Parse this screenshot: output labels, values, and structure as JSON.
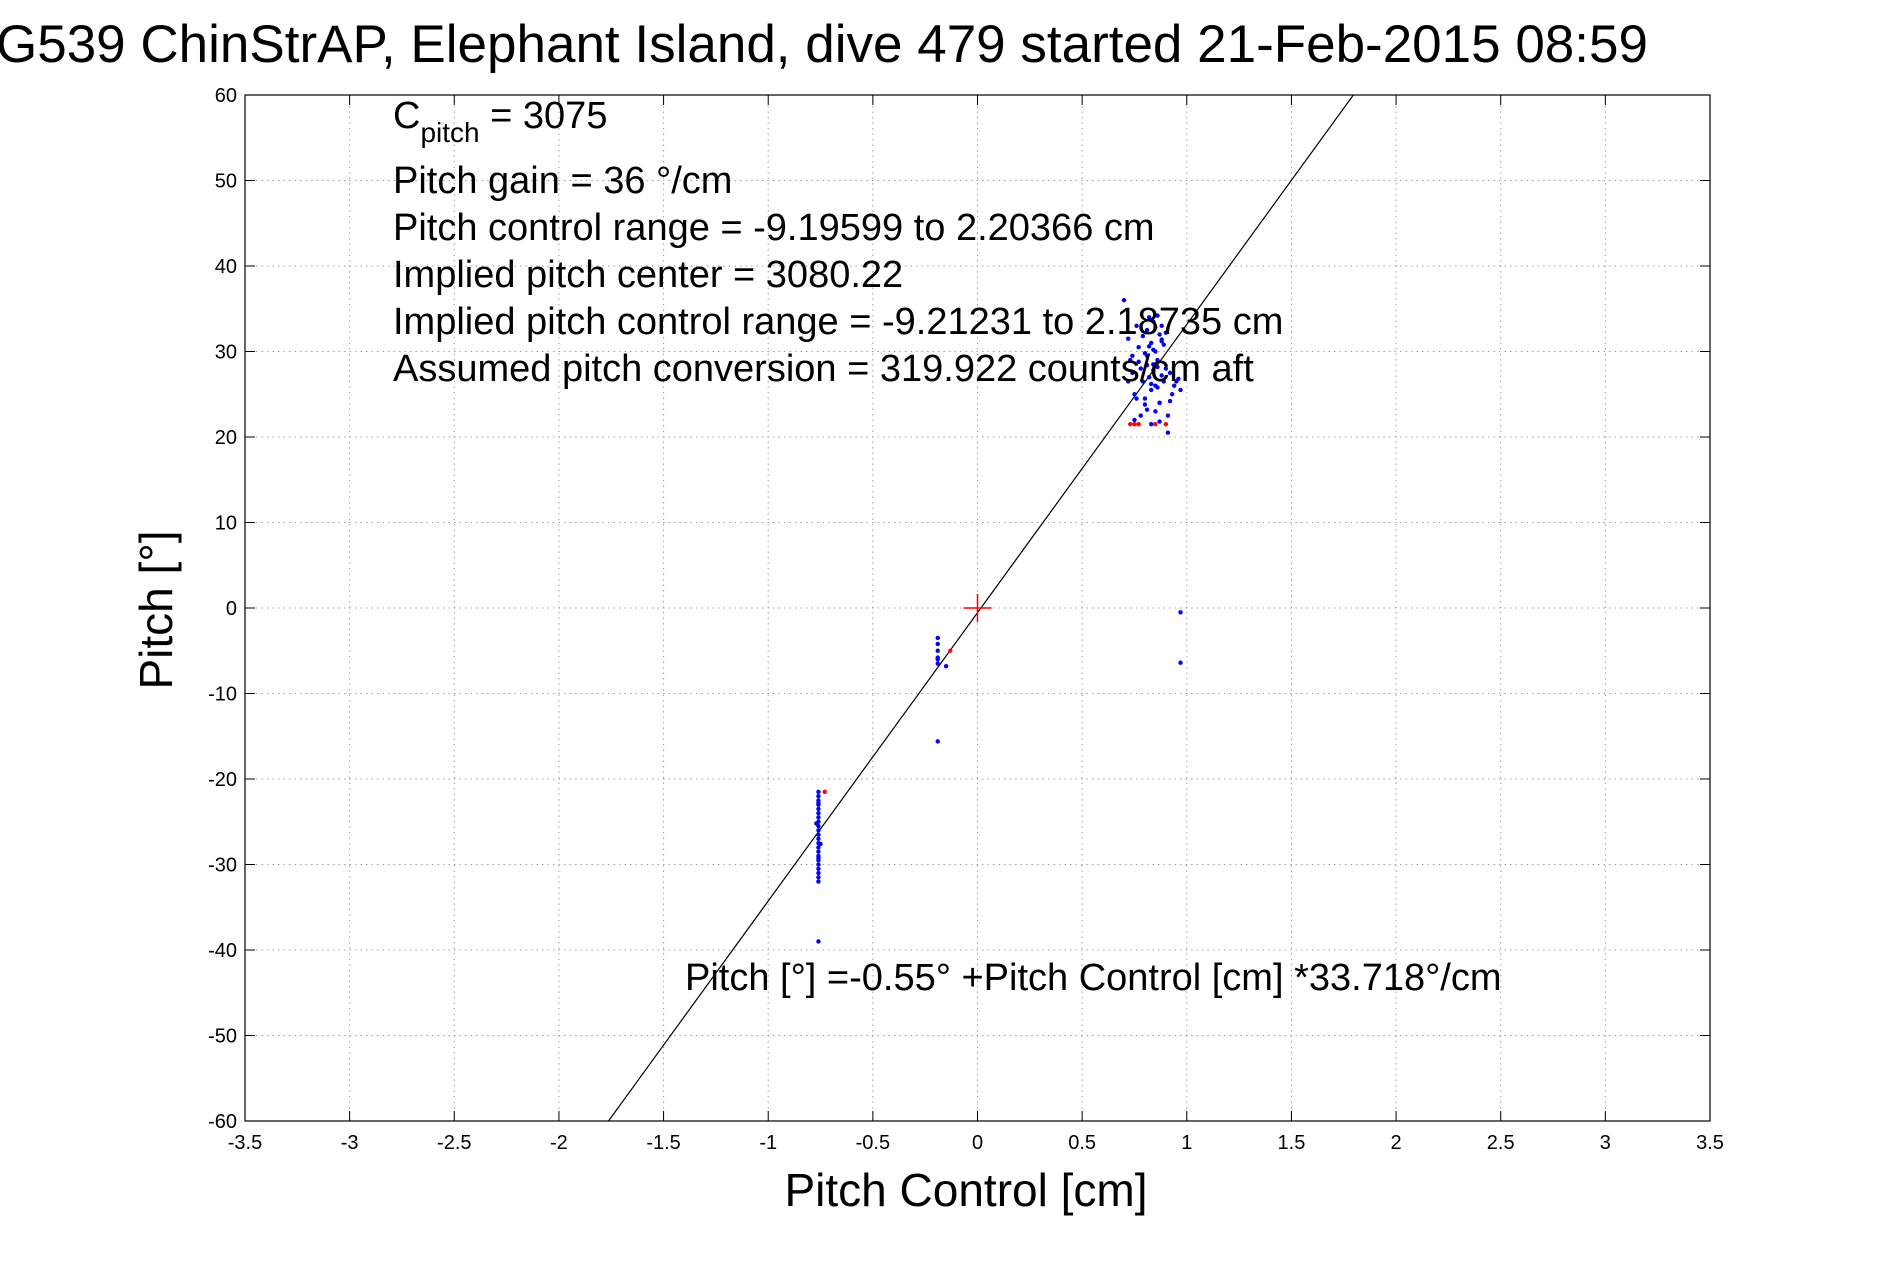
{
  "chart_data": {
    "type": "scatter",
    "title": "G539 ChinStrAP, Elephant Island, dive 479 started 21-Feb-2015 08:59",
    "xlabel": "Pitch Control [cm]",
    "ylabel": "Pitch [°]",
    "xlim": [
      -3.5,
      3.5
    ],
    "ylim": [
      -60,
      60
    ],
    "x_ticks": [
      -3.5,
      -3,
      -2.5,
      -2,
      -1.5,
      -1,
      -0.5,
      0,
      0.5,
      1,
      1.5,
      2,
      2.5,
      3,
      3.5
    ],
    "x_tick_labels": [
      "-3.5",
      "-3",
      "-2.5",
      "-2",
      "-1.5",
      "-1",
      "-0.5",
      "0",
      "0.5",
      "1",
      "1.5",
      "2",
      "2.5",
      "3",
      "3.5"
    ],
    "y_ticks": [
      -60,
      -50,
      -40,
      -30,
      -20,
      -10,
      0,
      10,
      20,
      30,
      40,
      50,
      60
    ],
    "y_tick_labels": [
      "-60",
      "-50",
      "-40",
      "-30",
      "-20",
      "-10",
      "0",
      "10",
      "20",
      "30",
      "40",
      "50",
      "60"
    ],
    "grid": true,
    "grid_style": "dotted",
    "colors": {
      "fit_line": "#000000",
      "blue_points": "#0000ff",
      "red_points": "#ff0000",
      "origin_marker": "#ff0000",
      "grid": "#a0a0a0"
    },
    "annotations": {
      "c_pitch": {
        "main": "C",
        "subscript": "pitch",
        "rest": " = 3075"
      },
      "lines": [
        "Pitch gain = 36 °/cm",
        "Pitch control range = -9.19599 to 2.20366 cm",
        "Implied pitch center = 3080.22",
        "Implied pitch control range = -9.21231 to 2.18735 cm",
        "Assumed pitch conversion = 319.922 counts/cm aft"
      ],
      "equation": "Pitch [°] =-0.55° +Pitch Control [cm] *33.718°/cm"
    },
    "fit_line": {
      "name": "fit",
      "intercept": -0.55,
      "slope": 33.718
    },
    "origin_marker": {
      "x": 0,
      "y": 0,
      "marker": "+"
    },
    "series": [
      {
        "color": "blue",
        "marker": "dot",
        "x": [
          -0.76,
          -0.76,
          -0.76,
          -0.76,
          -0.76,
          -0.76,
          -0.76,
          -0.76,
          -0.76,
          -0.76,
          -0.76,
          -0.76,
          -0.76,
          -0.76,
          -0.76,
          -0.76,
          -0.76,
          -0.76,
          -0.76,
          -0.76,
          -0.76,
          -0.76,
          -0.76,
          -0.77,
          -0.75,
          -0.76,
          -0.76,
          -0.19,
          -0.19,
          -0.19,
          -0.19,
          -0.19,
          -0.19,
          -0.15,
          -0.19,
          0.97,
          0.97,
          0.7,
          0.72,
          0.73,
          0.74,
          0.75,
          0.76,
          0.77,
          0.78,
          0.79,
          0.8,
          0.81,
          0.81,
          0.82,
          0.82,
          0.83,
          0.83,
          0.84,
          0.84,
          0.85,
          0.85,
          0.86,
          0.86,
          0.87,
          0.87,
          0.88,
          0.88,
          0.89,
          0.9,
          0.91,
          0.92,
          0.93,
          0.95,
          0.97,
          0.72,
          0.74,
          0.76,
          0.78,
          0.8,
          0.83,
          0.85,
          0.87,
          0.89,
          0.91,
          0.94,
          0.96,
          0.75,
          0.77,
          0.79,
          0.81,
          0.84,
          0.86,
          0.88,
          0.9,
          0.92,
          0.8,
          0.82,
          0.84,
          0.86,
          0.88,
          0.85,
          0.87,
          0.83,
          0.81
        ],
        "y": [
          -21.5,
          -22.0,
          -22.5,
          -23.0,
          -23.5,
          -24.0,
          -24.5,
          -25.0,
          -25.5,
          -26.0,
          -26.5,
          -27.0,
          -27.5,
          -28.0,
          -28.5,
          -29.0,
          -29.5,
          -30.0,
          -30.5,
          -31.0,
          -31.5,
          -32.0,
          -22.8,
          -25.2,
          -27.6,
          -29.2,
          -39.0,
          -3.5,
          -4.2,
          -5.0,
          -5.8,
          -6.5,
          -6.0,
          -6.8,
          -15.6,
          -0.5,
          -6.4,
          36.0,
          31.5,
          29.0,
          27.5,
          25.0,
          33.0,
          30.5,
          28.0,
          26.5,
          24.5,
          32.5,
          29.5,
          34.0,
          27.0,
          31.0,
          25.5,
          33.5,
          28.5,
          30.0,
          26.0,
          34.2,
          29.0,
          32.0,
          24.0,
          31.2,
          27.2,
          26.5,
          28.0,
          22.5,
          27.5,
          25.0,
          26.5,
          25.5,
          26.5,
          29.5,
          24.5,
          22.5,
          23.8,
          21.5,
          23.0,
          24.0,
          30.8,
          20.5,
          26.0,
          26.8,
          22.0,
          28.8,
          31.8,
          23.2,
          30.2,
          28.2,
          33.0,
          32.2,
          24.2,
          29.8,
          30.6,
          27.8,
          25.8,
          31.4,
          32.8,
          21.8,
          26.2,
          28.4
        ]
      },
      {
        "color": "red",
        "marker": "dot",
        "x": [
          -0.73,
          -0.13,
          0.73,
          0.75,
          0.77,
          0.85,
          0.9
        ],
        "y": [
          -21.5,
          -5.0,
          21.5,
          21.5,
          21.5,
          21.5,
          21.5
        ]
      }
    ]
  }
}
